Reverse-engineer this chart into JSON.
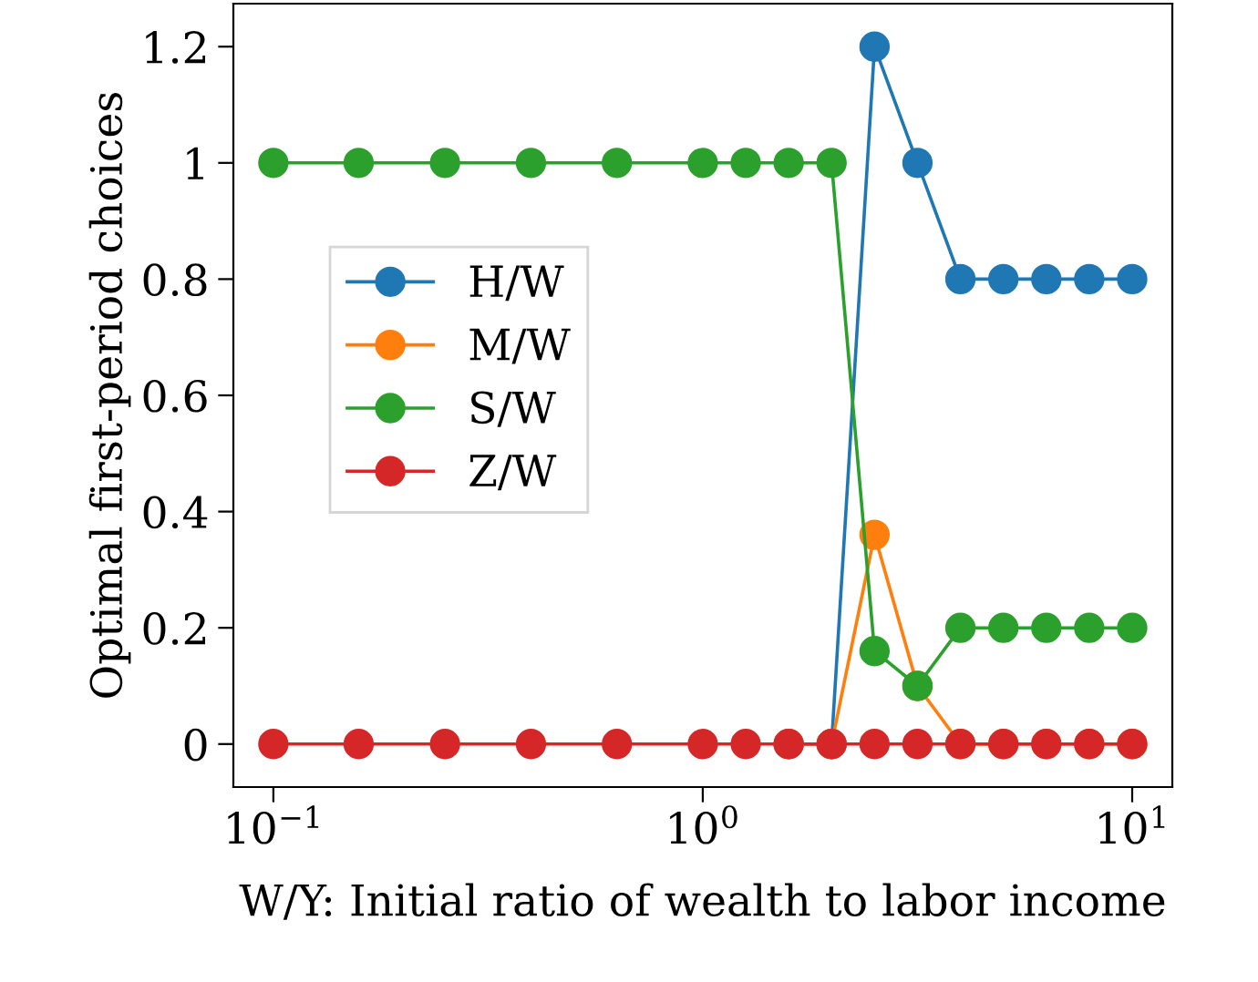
{
  "chart_data": {
    "type": "line",
    "xlabel": "W/Y: Initial ratio of wealth to labor income",
    "ylabel": "Optimal first-period choices",
    "x": [
      0.1,
      0.158,
      0.251,
      0.398,
      0.631,
      1.0,
      1.259,
      1.585,
      1.995,
      2.512,
      3.162,
      3.981,
      5.012,
      6.31,
      7.943,
      10.0
    ],
    "series": [
      {
        "name": "H/W",
        "color": "#1f77b4",
        "values": [
          null,
          null,
          null,
          null,
          null,
          null,
          null,
          0,
          0,
          1.2,
          1.0,
          0.8,
          0.8,
          0.8,
          0.8,
          0.8
        ]
      },
      {
        "name": "M/W",
        "color": "#ff7f0e",
        "values": [
          null,
          null,
          null,
          null,
          null,
          null,
          null,
          0,
          0,
          0.36,
          0.1,
          0,
          0,
          0,
          0,
          0
        ]
      },
      {
        "name": "S/W",
        "color": "#2ca02c",
        "values": [
          1,
          1,
          1,
          1,
          1,
          1,
          1,
          1,
          1,
          0.16,
          0.1,
          0.2,
          0.2,
          0.2,
          0.2,
          0.2
        ]
      },
      {
        "name": "Z/W",
        "color": "#d62728",
        "values": [
          0,
          0,
          0,
          0,
          0,
          0,
          0,
          0,
          0,
          0,
          0,
          0,
          0,
          0,
          0,
          0
        ]
      }
    ],
    "log": "x",
    "xlim": [
      0.0807,
      12.4
    ],
    "xticks": [
      {
        "value": 0.1,
        "label": "10$^{−1}$"
      },
      {
        "value": 1,
        "label": "10$^{0}$"
      },
      {
        "value": 10,
        "label": "10$^{1}$"
      }
    ],
    "ylim": [
      -0.074,
      1.274
    ],
    "yticks": [
      0,
      0.2,
      0.4,
      0.6,
      0.8,
      1,
      1.2
    ],
    "marker": "circle",
    "grid": false,
    "legend": "left"
  }
}
